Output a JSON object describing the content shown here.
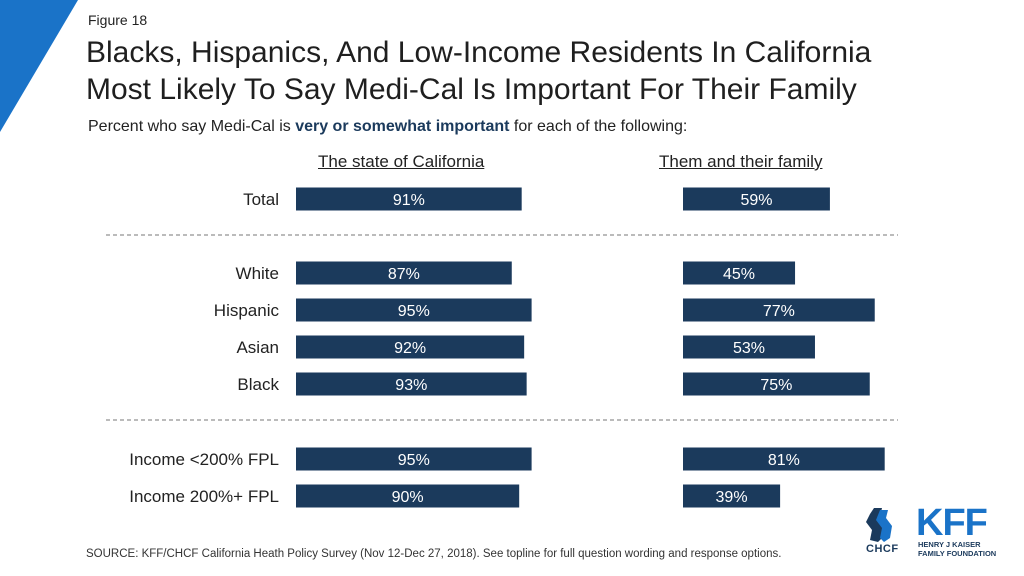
{
  "figure_label": "Figure 18",
  "title_line1": "Blacks, Hispanics, And Low-Income Residents In California",
  "title_line2": "Most Likely To Say Medi-Cal Is Important For Their Family",
  "subtitle_pre": "Percent who say Medi-Cal is ",
  "subtitle_bold": "very or somewhat important",
  "subtitle_post": " for each of the following:",
  "source": "SOURCE: KFF/CHCF California Heath Policy Survey (Nov 12-Dec 27, 2018). See topline for full question wording and response options.",
  "logos": {
    "chcf": "CHCF",
    "kff": "KFF",
    "kff_sub_line1": "HENRY J KAISER",
    "kff_sub_line2": "FAMILY FOUNDATION"
  },
  "colors": {
    "bar": "#1b3a5c",
    "accent": "#1a73c8"
  },
  "chart_data": {
    "type": "bar",
    "orientation": "horizontal",
    "categories": [
      "Total",
      "White",
      "Hispanic",
      "Asian",
      "Black",
      "Income <200% FPL",
      "Income 200%+ FPL"
    ],
    "series": [
      {
        "name": "The state of California",
        "values": [
          91,
          87,
          95,
          92,
          93,
          95,
          90
        ]
      },
      {
        "name": "Them and their family",
        "values": [
          59,
          45,
          77,
          53,
          75,
          81,
          39
        ]
      }
    ],
    "value_suffix": "%",
    "xlim": [
      0,
      100
    ],
    "groups": [
      [
        "Total"
      ],
      [
        "White",
        "Hispanic",
        "Asian",
        "Black"
      ],
      [
        "Income <200% FPL",
        "Income 200%+ FPL"
      ]
    ]
  }
}
